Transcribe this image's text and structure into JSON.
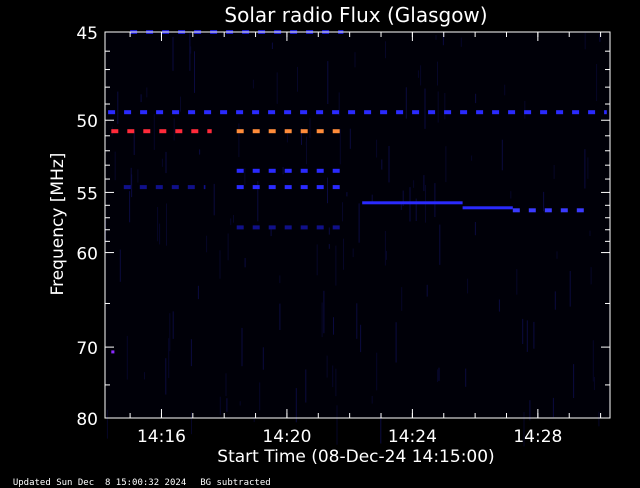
{
  "chart_data": {
    "type": "heatmap",
    "title": "Solar radio Flux (Glasgow)",
    "xlabel": "Start Time (08-Dec-24 14:15:00)",
    "ylabel": "Frequency [MHz]",
    "x_range_minutes": [
      -0.8,
      15.3
    ],
    "x_ticks": [
      {
        "label": "14:16",
        "minute": 1
      },
      {
        "label": "14:20",
        "minute": 5
      },
      {
        "label": "14:24",
        "minute": 9
      },
      {
        "label": "14:28",
        "minute": 13
      }
    ],
    "ylim": [
      45,
      80
    ],
    "y_ticks": [
      45,
      50,
      55,
      60,
      70,
      80
    ],
    "y_scale": "reciprocal",
    "grid": false,
    "background_color": "#000008",
    "emission_features": [
      {
        "freq_mhz": 50.7,
        "t_start_min": -0.6,
        "t_end_min": 2.6,
        "color": "#ff2a3a",
        "style": "dashed"
      },
      {
        "freq_mhz": 50.7,
        "t_start_min": 3.4,
        "t_end_min": 6.8,
        "color": "#ff8c3a",
        "style": "dashed"
      },
      {
        "freq_mhz": 49.5,
        "t_start_min": -0.7,
        "t_end_min": 15.2,
        "color": "#2a2aff",
        "style": "dashed"
      },
      {
        "freq_mhz": 53.4,
        "t_start_min": 3.4,
        "t_end_min": 6.8,
        "color": "#2a2aff",
        "style": "dashed"
      },
      {
        "freq_mhz": 54.6,
        "t_start_min": 3.4,
        "t_end_min": 6.8,
        "color": "#2a2aff",
        "style": "dashed"
      },
      {
        "freq_mhz": 45.0,
        "t_start_min": 0.0,
        "t_end_min": 6.8,
        "color": "#1a1acc",
        "style": "dashed"
      },
      {
        "freq_mhz": 55.8,
        "t_start_min": 7.4,
        "t_end_min": 10.6,
        "color": "#2a2aff",
        "style": "solid"
      },
      {
        "freq_mhz": 56.2,
        "t_start_min": 10.6,
        "t_end_min": 12.2,
        "color": "#2a2aff",
        "style": "solid"
      },
      {
        "freq_mhz": 56.4,
        "t_start_min": 12.2,
        "t_end_min": 14.7,
        "color": "#3a3aff",
        "style": "dashed"
      },
      {
        "freq_mhz": 70.6,
        "t_start_min": -0.6,
        "t_end_min": -0.5,
        "color": "#8a2aff",
        "style": "solid"
      },
      {
        "freq_mhz": 54.6,
        "t_start_min": -0.2,
        "t_end_min": 2.4,
        "color": "#10108a",
        "style": "dashed"
      },
      {
        "freq_mhz": 57.8,
        "t_start_min": 3.4,
        "t_end_min": 6.8,
        "color": "#10108a",
        "style": "dashed"
      }
    ]
  },
  "footer": {
    "updated": "Updated Sun Dec  8 15:00:32 2024",
    "note": "BG subtracted"
  }
}
